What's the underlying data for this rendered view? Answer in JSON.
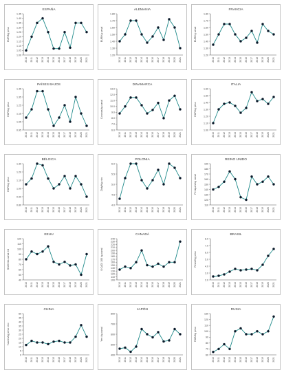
{
  "chart_data": [
    {
      "type": "line",
      "title": "ESPAÑA",
      "ylabel": "EUR/Kg peso",
      "categories": [
        "2010",
        "2011",
        "2012",
        "2013",
        "2014",
        "2015",
        "2016",
        "2017",
        "2018",
        "2019",
        "2020",
        "2021"
      ],
      "values": [
        1.05,
        1.2,
        1.35,
        1.4,
        1.25,
        1.07,
        1.07,
        1.25,
        1.08,
        1.35,
        1.35,
        1.25
      ],
      "yticks": [
        1.0,
        1.05,
        1.1,
        1.15,
        1.2,
        1.25,
        1.3,
        1.35,
        1.4,
        1.45
      ],
      "ylim": [
        1.0,
        1.45
      ],
      "ydecimals": 2
    },
    {
      "type": "line",
      "title": "ALEMANIA",
      "ylabel": "EUR/Kg canal",
      "categories": [
        "2010",
        "2011",
        "2012",
        "2013",
        "2014",
        "2015",
        "2016",
        "2017",
        "2018",
        "2019",
        "2020",
        "2021"
      ],
      "values": [
        1.4,
        1.5,
        1.7,
        1.7,
        1.5,
        1.38,
        1.47,
        1.6,
        1.42,
        1.72,
        1.6,
        1.3
      ],
      "yticks": [
        1.2,
        1.3,
        1.4,
        1.5,
        1.6,
        1.7,
        1.8
      ],
      "ylim": [
        1.2,
        1.8
      ],
      "ydecimals": 2
    },
    {
      "type": "line",
      "title": "FRANCIA",
      "ylabel": "EUR/Kg canal",
      "categories": [
        "2010",
        "2011",
        "2012",
        "2013",
        "2014",
        "2015",
        "2016",
        "2017",
        "2018",
        "2019",
        "2020",
        "2021"
      ],
      "values": [
        1.35,
        1.5,
        1.65,
        1.65,
        1.5,
        1.4,
        1.45,
        1.55,
        1.38,
        1.65,
        1.55,
        1.5
      ],
      "yticks": [
        1.2,
        1.3,
        1.4,
        1.5,
        1.6,
        1.7,
        1.8
      ],
      "ylim": [
        1.2,
        1.8
      ],
      "ydecimals": 2
    },
    {
      "type": "line",
      "title": "PAÍSES BAJOS",
      "ylabel": "EUR/kg peso",
      "categories": [
        "2010",
        "2011",
        "2012",
        "2013",
        "2014",
        "2015",
        "2016",
        "2017",
        "2018",
        "2019",
        "2020",
        "2021"
      ],
      "values": [
        1.1,
        1.2,
        1.42,
        1.42,
        1.2,
        1.0,
        1.1,
        1.25,
        1.05,
        1.35,
        1.15,
        1.0
      ],
      "yticks": [
        0.95,
        1.05,
        1.15,
        1.25,
        1.35,
        1.45
      ],
      "ylim": [
        0.95,
        1.45
      ],
      "ydecimals": 2
    },
    {
      "type": "line",
      "title": "DINAMARCA",
      "ylabel": "Coronas/kg canal",
      "categories": [
        "2010",
        "2011",
        "2012",
        "2013",
        "2014",
        "2015",
        "2016",
        "2017",
        "2018",
        "2019",
        "2020",
        "2021"
      ],
      "values": [
        8.8,
        10.0,
        11.5,
        11.5,
        10.2,
        8.8,
        9.4,
        10.6,
        8.0,
        11.0,
        11.8,
        9.5
      ],
      "yticks": [
        6.0,
        7.0,
        8.0,
        9.0,
        10.0,
        11.0,
        12.0,
        13.0
      ],
      "ylim": [
        6.0,
        13.0
      ],
      "ydecimals": 1
    },
    {
      "type": "line",
      "title": "ITALIA",
      "ylabel": "EUR/kg peso",
      "categories": [
        "2010",
        "2011",
        "2012",
        "2013",
        "2014",
        "2015",
        "2016",
        "2017",
        "2018",
        "2019",
        "2020",
        "2021"
      ],
      "values": [
        1.1,
        1.3,
        1.38,
        1.4,
        1.35,
        1.25,
        1.32,
        1.55,
        1.42,
        1.45,
        1.38,
        1.48
      ],
      "yticks": [
        1.0,
        1.1,
        1.2,
        1.3,
        1.4,
        1.5,
        1.6
      ],
      "ylim": [
        1.0,
        1.6
      ],
      "ydecimals": 2
    },
    {
      "type": "line",
      "title": "BÉLGICA",
      "ylabel": "EUR/kg peso",
      "categories": [
        "2010",
        "2011",
        "2012",
        "2013",
        "2014",
        "2015",
        "2016",
        "2017",
        "2018",
        "2019",
        "2020",
        "2021"
      ],
      "values": [
        1.05,
        1.12,
        1.3,
        1.28,
        1.12,
        1.0,
        1.05,
        1.15,
        1.0,
        1.15,
        1.05,
        0.9
      ],
      "yticks": [
        0.8,
        0.9,
        1.0,
        1.1,
        1.2,
        1.3
      ],
      "ylim": [
        0.8,
        1.3
      ],
      "ydecimals": 2
    },
    {
      "type": "line",
      "title": "POLONIA",
      "ylabel": "Zloty/Kg vivo",
      "categories": [
        "2010",
        "2011",
        "2012",
        "2013",
        "2014",
        "2015",
        "2016",
        "2017",
        "2018",
        "2019",
        "2020",
        "2021"
      ],
      "values": [
        4.3,
        5.3,
        6.0,
        6.0,
        5.2,
        4.8,
        5.2,
        5.7,
        5.0,
        6.0,
        5.8,
        5.3
      ],
      "yticks": [
        4.0,
        4.5,
        5.0,
        5.5,
        6.0
      ],
      "ylim": [
        4.0,
        6.0
      ],
      "ydecimals": 1
    },
    {
      "type": "line",
      "title": "REINO UNIDO",
      "ylabel": "Peniques/kg canal",
      "categories": [
        "2010",
        "2011",
        "2012",
        "2013",
        "2014",
        "2015",
        "2016",
        "2017",
        "2018",
        "2019",
        "2020",
        "2021"
      ],
      "values": [
        140,
        145,
        155,
        175,
        160,
        125,
        120,
        165,
        150,
        155,
        165,
        150
      ],
      "yticks": [
        110,
        120,
        130,
        140,
        150,
        160,
        170,
        180,
        190
      ],
      "ylim": [
        110,
        190
      ],
      "ydecimals": 0
    },
    {
      "type": "line",
      "title": "EEUU",
      "ylabel": "$/100 lbs canal est",
      "categories": [
        "2010",
        "2011",
        "2012",
        "2013",
        "2014",
        "2015",
        "2016",
        "2017",
        "2018",
        "2019",
        "2020",
        "2021"
      ],
      "values": [
        80,
        95,
        90,
        95,
        105,
        75,
        70,
        75,
        68,
        70,
        50,
        90
      ],
      "yticks": [
        40,
        50,
        60,
        70,
        80,
        90,
        100,
        110,
        120
      ],
      "ylim": [
        40,
        120
      ],
      "ydecimals": 0
    },
    {
      "type": "line",
      "title": "CANADÁ",
      "ylabel": "$ CAD/ 100 kg canal",
      "categories": [
        "2010",
        "2011",
        "2012",
        "2013",
        "2014",
        "2015",
        "2016",
        "2017",
        "2018",
        "2019",
        "2020",
        "2021"
      ],
      "values": [
        135,
        145,
        140,
        160,
        200,
        150,
        145,
        155,
        145,
        160,
        160,
        230
      ],
      "yticks": [
        100,
        110,
        120,
        130,
        140,
        150,
        160,
        170,
        180,
        190,
        200,
        210,
        220,
        230,
        240
      ],
      "ylim": [
        100,
        240
      ],
      "ydecimals": 0
    },
    {
      "type": "line",
      "title": "BRASIL",
      "ylabel": "Reais/Kg peso",
      "categories": [
        "2010",
        "2011",
        "2012",
        "2013",
        "2014",
        "2015",
        "2016",
        "2017",
        "2018",
        "2019",
        "2020",
        "2021"
      ],
      "values": [
        2.5,
        2.6,
        2.8,
        3.2,
        3.6,
        3.4,
        3.5,
        3.6,
        3.4,
        4.2,
        5.5,
        6.5
      ],
      "yticks": [
        2.0,
        3.0,
        4.0,
        5.0,
        6.0,
        7.0,
        8.0
      ],
      "ylim": [
        2.0,
        8.0
      ],
      "ydecimals": 1
    },
    {
      "type": "line",
      "title": "CHINA",
      "ylabel": "Yuanes/kg peso vivo",
      "categories": [
        "2010",
        "2011",
        "2012",
        "2013",
        "2014",
        "2015",
        "2016",
        "2017",
        "2018",
        "2019",
        "2020",
        "2021"
      ],
      "values": [
        12,
        17,
        15,
        15,
        13,
        16,
        17,
        15,
        15,
        22,
        36,
        22
      ],
      "yticks": [
        0,
        5,
        10,
        15,
        20,
        25,
        30,
        35,
        40,
        45,
        50
      ],
      "ylim": [
        0,
        50
      ],
      "ydecimals": 0
    },
    {
      "type": "line",
      "title": "JAPÓN",
      "ylabel": "Yen /kg canal",
      "categories": [
        "2010",
        "2011",
        "2012",
        "2013",
        "2014",
        "2015",
        "2016",
        "2017",
        "2018",
        "2019",
        "2020",
        "2021"
      ],
      "values": [
        460,
        470,
        430,
        480,
        650,
        600,
        570,
        620,
        530,
        540,
        650,
        600
      ],
      "yticks": [
        400,
        500,
        600,
        700,
        800
      ],
      "ylim": [
        400,
        800
      ],
      "ydecimals": 0
    },
    {
      "type": "line",
      "title": "RUSIA",
      "ylabel": "RUB/Kg peso",
      "categories": [
        "2010",
        "2011",
        "2012",
        "2013",
        "2014",
        "2015",
        "2016",
        "2017",
        "2018",
        "2019",
        "2020",
        "2021"
      ],
      "values": [
        65,
        70,
        78,
        70,
        100,
        105,
        95,
        95,
        100,
        95,
        100,
        125
      ],
      "yticks": [
        60,
        70,
        80,
        90,
        100,
        110,
        120,
        130
      ],
      "ylim": [
        60,
        130
      ],
      "ydecimals": 0
    }
  ]
}
